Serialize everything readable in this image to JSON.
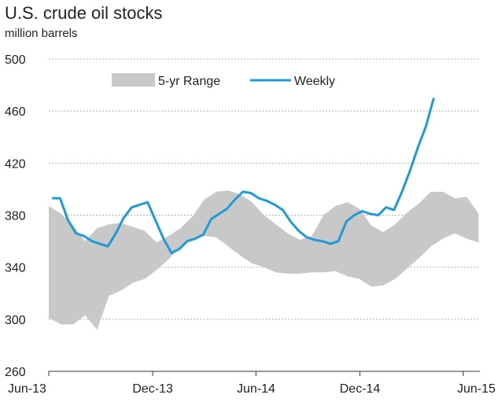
{
  "chart_data": {
    "type": "line",
    "title": "U.S. crude oil stocks",
    "ylabel": "million barrels",
    "xlabel": "",
    "ylim": [
      260,
      500
    ],
    "yticks": [
      260,
      300,
      340,
      380,
      420,
      460,
      500
    ],
    "xlim": [
      "2013-06-01",
      "2015-06-30"
    ],
    "xticks": [
      {
        "label": "Jun-13",
        "date": "2013-06-01"
      },
      {
        "label": "Dec-13",
        "date": "2013-12-01"
      },
      {
        "label": "Jun-14",
        "date": "2014-06-01"
      },
      {
        "label": "Dec-14",
        "date": "2014-12-01"
      },
      {
        "label": "Jun-15",
        "date": "2015-06-01"
      }
    ],
    "grid": "horizontal dashed",
    "legend": "top",
    "colors": {
      "weekly": "#1e9bd7",
      "range": "#c8c8c8",
      "grid": "#b0b0b0"
    },
    "series": [
      {
        "name": "5-yr Range",
        "kind": "band",
        "x": [
          "2013-06-01",
          "2013-06-23",
          "2013-07-14",
          "2013-08-04",
          "2013-08-25",
          "2013-09-15",
          "2013-10-06",
          "2013-10-27",
          "2013-11-17",
          "2013-12-08",
          "2013-12-29",
          "2014-01-19",
          "2014-02-09",
          "2014-03-02",
          "2014-03-23",
          "2014-04-13",
          "2014-05-04",
          "2014-05-25",
          "2014-06-15",
          "2014-07-06",
          "2014-07-27",
          "2014-08-17",
          "2014-09-07",
          "2014-09-28",
          "2014-10-19",
          "2014-11-09",
          "2014-11-30",
          "2014-12-21",
          "2015-01-11",
          "2015-02-01",
          "2015-02-22",
          "2015-03-15",
          "2015-04-05",
          "2015-04-26",
          "2015-05-17",
          "2015-06-07",
          "2015-06-28"
        ],
        "low": [
          301,
          296,
          296,
          303,
          292,
          318,
          322,
          328,
          331,
          338,
          346,
          356,
          362,
          364,
          363,
          356,
          349,
          343,
          340,
          336,
          335,
          335,
          336,
          336,
          337,
          333,
          331,
          325,
          326,
          331,
          339,
          347,
          356,
          362,
          366,
          362,
          359
        ],
        "high": [
          387,
          381,
          372,
          360,
          370,
          373,
          374,
          371,
          368,
          359,
          364,
          370,
          379,
          392,
          398,
          399,
          396,
          390,
          380,
          373,
          366,
          361,
          364,
          380,
          387,
          390,
          385,
          372,
          367,
          373,
          382,
          389,
          398,
          398,
          393,
          394,
          381
        ]
      },
      {
        "name": "Weekly",
        "kind": "line",
        "x": [
          "2013-06-07",
          "2013-06-21",
          "2013-07-05",
          "2013-07-19",
          "2013-08-02",
          "2013-08-16",
          "2013-08-30",
          "2013-09-13",
          "2013-09-27",
          "2013-10-11",
          "2013-10-25",
          "2013-11-08",
          "2013-11-22",
          "2013-12-06",
          "2013-12-20",
          "2014-01-03",
          "2014-01-17",
          "2014-01-31",
          "2014-02-14",
          "2014-02-28",
          "2014-03-14",
          "2014-03-28",
          "2014-04-11",
          "2014-04-25",
          "2014-05-09",
          "2014-05-23",
          "2014-06-06",
          "2014-06-20",
          "2014-07-04",
          "2014-07-18",
          "2014-08-01",
          "2014-08-15",
          "2014-08-29",
          "2014-09-12",
          "2014-09-26",
          "2014-10-10",
          "2014-10-24",
          "2014-11-07",
          "2014-11-21",
          "2014-12-05",
          "2014-12-19",
          "2015-01-02",
          "2015-01-16",
          "2015-01-30",
          "2015-02-13",
          "2015-02-27",
          "2015-03-13",
          "2015-03-27",
          "2015-04-10"
        ],
        "values": [
          393,
          393,
          376,
          366,
          364,
          360,
          358,
          356,
          366,
          378,
          386,
          388,
          390,
          376,
          362,
          351,
          354,
          360,
          362,
          365,
          377,
          381,
          385,
          392,
          398,
          397,
          393,
          391,
          388,
          384,
          375,
          368,
          363,
          361,
          360,
          358,
          360,
          375,
          380,
          383,
          381,
          380,
          386,
          384,
          398,
          414,
          432,
          448,
          470
        ]
      }
    ]
  }
}
